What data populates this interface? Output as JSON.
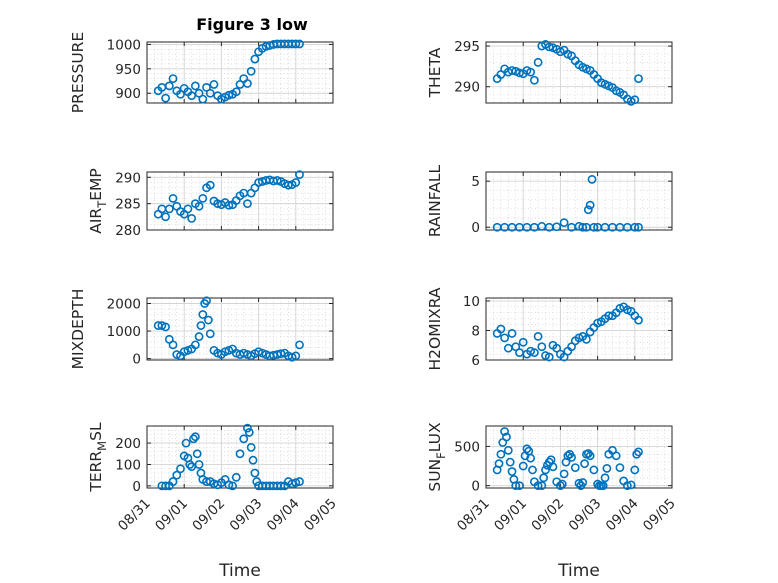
{
  "figure": {
    "title": "Figure 3 low"
  },
  "colors": {
    "marker": "#0072BD",
    "grid": "#d4d4d4",
    "axis": "#262626"
  },
  "chart_data": [
    {
      "id": "pressure",
      "type": "scatter",
      "title": "Figure 3 low",
      "ylabel": "PRESSURE",
      "ylabel_sub": null,
      "xlabel": "",
      "ylim": [
        880,
        1005
      ],
      "yticks": [
        900,
        950,
        1000
      ],
      "ytick_labels": [
        "900",
        "950",
        "1000"
      ],
      "xticks_shown": false,
      "x": [
        0.3,
        0.4,
        0.5,
        0.6,
        0.7,
        0.8,
        0.9,
        1.0,
        1.1,
        1.2,
        1.3,
        1.4,
        1.5,
        1.6,
        1.7,
        1.8,
        1.9,
        2.0,
        2.1,
        2.2,
        2.3,
        2.4,
        2.5,
        2.6,
        2.7,
        2.8,
        2.9,
        3.0,
        3.1,
        3.2,
        3.3,
        3.4,
        3.5,
        3.6,
        3.7,
        3.8,
        3.9,
        4.0,
        4.1
      ],
      "y": [
        905,
        912,
        890,
        915,
        930,
        905,
        898,
        910,
        903,
        895,
        915,
        900,
        888,
        912,
        900,
        918,
        895,
        888,
        892,
        896,
        898,
        903,
        918,
        930,
        920,
        945,
        970,
        985,
        992,
        996,
        998,
        1000,
        1001,
        1001,
        1001,
        1001,
        1001,
        1001,
        1001
      ]
    },
    {
      "id": "theta",
      "type": "scatter",
      "ylabel": "THETA",
      "ylabel_sub": null,
      "xlabel": "",
      "ylim": [
        288,
        295.5
      ],
      "yticks": [
        290,
        295
      ],
      "ytick_labels": [
        "290",
        "295"
      ],
      "xticks_shown": false,
      "x": [
        0.3,
        0.4,
        0.5,
        0.6,
        0.7,
        0.8,
        0.9,
        1.0,
        1.1,
        1.2,
        1.3,
        1.4,
        1.5,
        1.6,
        1.7,
        1.8,
        1.9,
        2.0,
        2.1,
        2.2,
        2.3,
        2.4,
        2.5,
        2.6,
        2.7,
        2.8,
        2.9,
        3.0,
        3.1,
        3.2,
        3.3,
        3.4,
        3.5,
        3.6,
        3.7,
        3.8,
        3.9,
        4.0,
        4.1
      ],
      "y": [
        291,
        291.5,
        292.2,
        291.8,
        292,
        291.9,
        291.7,
        291.6,
        292,
        291.8,
        290.8,
        293,
        295,
        295.2,
        294.9,
        294.8,
        294.6,
        294.3,
        294.5,
        294,
        293.8,
        293.2,
        292.7,
        292.4,
        292.2,
        292,
        291.5,
        291,
        290.5,
        290.3,
        290.1,
        289.9,
        289.5,
        289.3,
        289,
        288.5,
        288.2,
        288.4,
        291
      ]
    },
    {
      "id": "air_temp",
      "type": "scatter",
      "ylabel": "AIR",
      "ylabel_sub": "T",
      "ylabel_tail": "EMP",
      "xlabel": "",
      "ylim": [
        280,
        291
      ],
      "yticks": [
        280,
        285,
        290
      ],
      "ytick_labels": [
        "280",
        "285",
        "290"
      ],
      "xticks_shown": false,
      "x": [
        0.3,
        0.4,
        0.5,
        0.6,
        0.7,
        0.8,
        0.9,
        1.0,
        1.1,
        1.2,
        1.3,
        1.4,
        1.5,
        1.6,
        1.7,
        1.8,
        1.9,
        2.0,
        2.1,
        2.2,
        2.3,
        2.4,
        2.5,
        2.6,
        2.7,
        2.8,
        2.9,
        3.0,
        3.1,
        3.2,
        3.3,
        3.4,
        3.5,
        3.6,
        3.7,
        3.8,
        3.9,
        4.0,
        4.1
      ],
      "y": [
        283,
        284,
        282.5,
        284,
        286,
        284.5,
        283.5,
        283,
        284,
        282.2,
        285,
        284.5,
        286,
        288,
        288.5,
        285.5,
        285,
        284.8,
        285.2,
        284.7,
        284.8,
        285.6,
        286.5,
        287,
        285,
        287,
        288,
        289,
        289.2,
        289.4,
        289.5,
        289.3,
        289.4,
        289.2,
        288.8,
        288.5,
        288.6,
        289,
        290.5
      ]
    },
    {
      "id": "rainfall",
      "type": "scatter",
      "ylabel": "RAINFALL",
      "ylabel_sub": null,
      "xlabel": "",
      "ylim": [
        -0.3,
        6
      ],
      "yticks": [
        0,
        5
      ],
      "ytick_labels": [
        "0",
        "5"
      ],
      "xticks_shown": false,
      "x": [
        0.3,
        0.5,
        0.7,
        0.9,
        1.1,
        1.3,
        1.5,
        1.7,
        1.9,
        2.1,
        2.3,
        2.5,
        2.6,
        2.7,
        2.75,
        2.8,
        2.85,
        2.9,
        3.0,
        3.2,
        3.4,
        3.6,
        3.8,
        4.0,
        4.1
      ],
      "y": [
        0,
        0,
        0,
        0,
        0,
        0,
        0.1,
        0,
        0.05,
        0.5,
        0,
        0.1,
        0,
        0,
        1.9,
        2.4,
        5.2,
        0,
        0,
        0,
        0,
        0,
        0,
        0,
        0
      ]
    },
    {
      "id": "mixdepth",
      "type": "scatter",
      "ylabel": "MIXDEPTH",
      "ylabel_sub": null,
      "xlabel": "",
      "ylim": [
        -50,
        2200
      ],
      "yticks": [
        0,
        1000,
        2000
      ],
      "ytick_labels": [
        "0",
        "1000",
        "2000"
      ],
      "xticks_shown": false,
      "x": [
        0.3,
        0.4,
        0.5,
        0.6,
        0.7,
        0.8,
        0.9,
        1.0,
        1.1,
        1.2,
        1.3,
        1.4,
        1.45,
        1.5,
        1.55,
        1.6,
        1.65,
        1.7,
        1.8,
        1.9,
        2.0,
        2.1,
        2.2,
        2.3,
        2.4,
        2.5,
        2.6,
        2.7,
        2.8,
        2.9,
        3.0,
        3.1,
        3.2,
        3.3,
        3.4,
        3.5,
        3.6,
        3.7,
        3.8,
        3.9,
        4.0,
        4.1
      ],
      "y": [
        1200,
        1200,
        1150,
        700,
        500,
        150,
        100,
        250,
        300,
        350,
        500,
        800,
        1200,
        1600,
        2000,
        2100,
        1400,
        900,
        300,
        200,
        150,
        250,
        300,
        350,
        200,
        150,
        200,
        150,
        100,
        180,
        250,
        200,
        150,
        100,
        120,
        150,
        180,
        200,
        100,
        50,
        100,
        500
      ]
    },
    {
      "id": "h2omixra",
      "type": "scatter",
      "ylabel": "H2OMIXRA",
      "ylabel_sub": null,
      "xlabel": "",
      "ylim": [
        6,
        10.2
      ],
      "yticks": [
        6,
        8,
        10
      ],
      "ytick_labels": [
        "6",
        "8",
        "10"
      ],
      "xticks_shown": false,
      "x": [
        0.3,
        0.4,
        0.5,
        0.6,
        0.7,
        0.8,
        0.9,
        1.0,
        1.1,
        1.2,
        1.3,
        1.4,
        1.5,
        1.6,
        1.7,
        1.8,
        1.9,
        2.0,
        2.1,
        2.2,
        2.3,
        2.4,
        2.5,
        2.6,
        2.7,
        2.8,
        2.9,
        3.0,
        3.1,
        3.2,
        3.3,
        3.4,
        3.5,
        3.6,
        3.7,
        3.8,
        3.9,
        4.0,
        4.1
      ],
      "y": [
        7.8,
        8.1,
        7.5,
        6.8,
        7.8,
        6.9,
        6.5,
        7.2,
        6.4,
        6.6,
        6.5,
        7.6,
        6.9,
        6.3,
        6.2,
        7.0,
        6.8,
        6.4,
        6.2,
        6.6,
        6.9,
        7.3,
        7.5,
        7.6,
        7.4,
        7.9,
        8.2,
        8.5,
        8.6,
        8.8,
        9.0,
        9.0,
        9.2,
        9.5,
        9.6,
        9.4,
        9.3,
        9.0,
        8.7
      ]
    },
    {
      "id": "terr_msl",
      "type": "scatter",
      "ylabel": "TERR",
      "ylabel_sub": "M",
      "ylabel_tail": "SL",
      "xlabel": "Time",
      "ylim": [
        -10,
        280
      ],
      "yticks": [
        0,
        100,
        200
      ],
      "ytick_labels": [
        "0",
        "100",
        "200"
      ],
      "xticks_shown": true,
      "x": [
        0.4,
        0.5,
        0.6,
        0.7,
        0.8,
        0.9,
        1.0,
        1.05,
        1.1,
        1.15,
        1.2,
        1.25,
        1.3,
        1.35,
        1.4,
        1.45,
        1.5,
        1.6,
        1.7,
        1.8,
        1.9,
        2.0,
        2.1,
        2.2,
        2.3,
        2.4,
        2.5,
        2.6,
        2.7,
        2.75,
        2.8,
        2.85,
        2.9,
        2.95,
        3.0,
        3.1,
        3.2,
        3.3,
        3.4,
        3.5,
        3.6,
        3.7,
        3.8,
        3.9,
        4.0,
        4.1
      ],
      "y": [
        0,
        0,
        0,
        20,
        50,
        80,
        140,
        200,
        130,
        100,
        90,
        220,
        230,
        150,
        100,
        60,
        30,
        20,
        20,
        10,
        5,
        15,
        30,
        5,
        0,
        40,
        150,
        220,
        270,
        250,
        180,
        120,
        60,
        20,
        0,
        0,
        0,
        0,
        0,
        0,
        0,
        0,
        20,
        10,
        15,
        20
      ]
    },
    {
      "id": "sun_flux",
      "type": "scatter",
      "ylabel": "SUN",
      "ylabel_sub": "F",
      "ylabel_tail": "LUX",
      "xlabel": "Time",
      "ylim": [
        -30,
        760
      ],
      "yticks": [
        0,
        500
      ],
      "ytick_labels": [
        "0",
        "500"
      ],
      "xticks_shown": true,
      "x": [
        0.3,
        0.35,
        0.4,
        0.45,
        0.5,
        0.55,
        0.6,
        0.65,
        0.7,
        0.75,
        0.8,
        0.9,
        1.0,
        1.05,
        1.1,
        1.15,
        1.2,
        1.25,
        1.3,
        1.4,
        1.5,
        1.55,
        1.6,
        1.65,
        1.7,
        1.75,
        1.8,
        1.9,
        2.0,
        2.05,
        2.1,
        2.15,
        2.2,
        2.25,
        2.3,
        2.4,
        2.5,
        2.55,
        2.6,
        2.65,
        2.7,
        2.75,
        2.8,
        2.9,
        3.0,
        3.05,
        3.1,
        3.15,
        3.2,
        3.25,
        3.3,
        3.4,
        3.5,
        3.6,
        3.7,
        3.8,
        3.9,
        4.0,
        4.05,
        4.1
      ],
      "y": [
        200,
        280,
        400,
        550,
        690,
        620,
        450,
        300,
        180,
        80,
        0,
        0,
        250,
        380,
        470,
        440,
        350,
        200,
        50,
        0,
        0,
        100,
        200,
        260,
        300,
        330,
        240,
        50,
        0,
        20,
        150,
        300,
        380,
        400,
        360,
        230,
        30,
        0,
        40,
        280,
        400,
        410,
        380,
        200,
        20,
        0,
        0,
        0,
        100,
        220,
        400,
        450,
        380,
        230,
        60,
        0,
        10,
        200,
        400,
        430
      ],
      "xtick_labels": [
        "08/31",
        "09/01",
        "09/02",
        "09/03",
        "09/04",
        "09/05"
      ],
      "xlim": [
        "08/31",
        "09/05"
      ]
    }
  ],
  "x_axis": {
    "tick_labels": [
      "08/31",
      "09/01",
      "09/02",
      "09/03",
      "09/04",
      "09/05"
    ],
    "label": "Time"
  }
}
